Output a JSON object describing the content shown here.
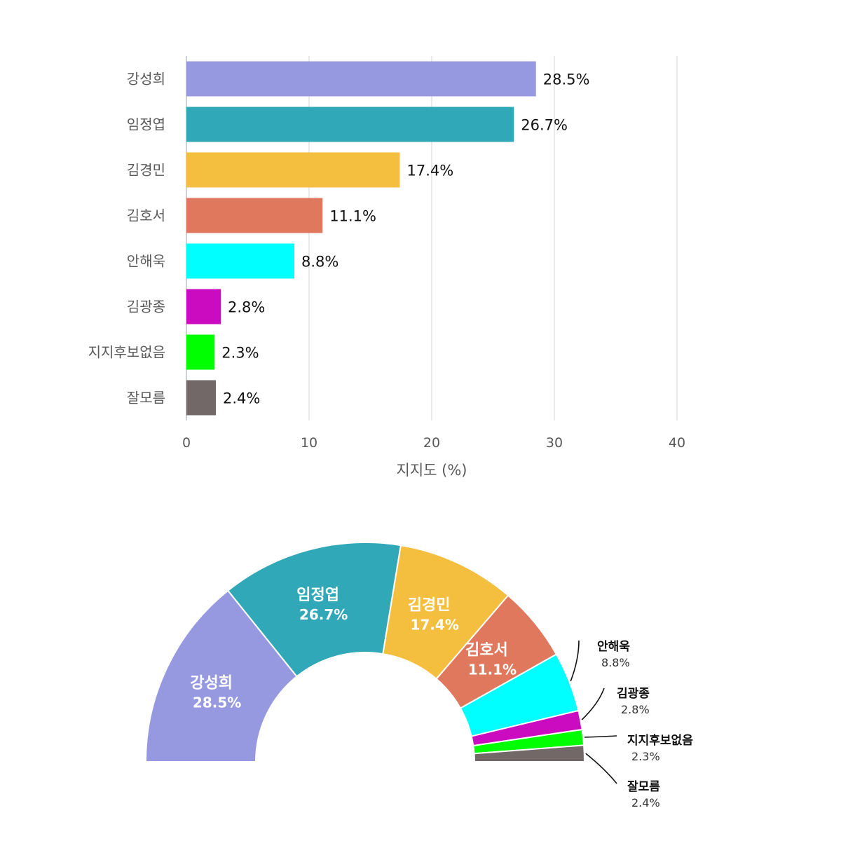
{
  "chart_data": [
    {
      "type": "bar",
      "orientation": "horizontal",
      "categories": [
        "강성희",
        "임정엽",
        "김경민",
        "김호서",
        "안해욱",
        "김광종",
        "지지후보없음",
        "잘모름"
      ],
      "values": [
        28.5,
        26.7,
        17.4,
        11.1,
        8.8,
        2.8,
        2.3,
        2.4
      ],
      "value_labels": [
        "28.5%",
        "26.7%",
        "17.4%",
        "11.1%",
        "8.8%",
        "2.8%",
        "2.3%",
        "2.4%"
      ],
      "colors": [
        "#9799E0",
        "#31A8B8",
        "#F4BE3F",
        "#DF785C",
        "#00FFFF",
        "#CB0BBF",
        "#00FF00",
        "#736868"
      ],
      "xlabel": "지지도 (%)",
      "xlim": [
        0,
        40
      ],
      "xticks": [
        0,
        10,
        20,
        30,
        40
      ],
      "xtick_labels": [
        "0",
        "10",
        "20",
        "30",
        "40"
      ],
      "grid": true
    },
    {
      "type": "pie",
      "style": "half-donut",
      "categories": [
        "강성희",
        "임정엽",
        "김경민",
        "김호서",
        "안해욱",
        "김광종",
        "지지후보없음",
        "잘모름"
      ],
      "values": [
        28.5,
        26.7,
        17.4,
        11.1,
        8.8,
        2.8,
        2.3,
        2.4
      ],
      "value_labels": [
        "28.5%",
        "26.7%",
        "17.4%",
        "11.1%",
        "8.8%",
        "2.8%",
        "2.3%",
        "2.4%"
      ],
      "colors": [
        "#9799E0",
        "#31A8B8",
        "#F4BE3F",
        "#DF785C",
        "#00FFFF",
        "#CB0BBF",
        "#00FF00",
        "#736868"
      ],
      "labels_inside": [
        true,
        true,
        true,
        true,
        false,
        false,
        false,
        false
      ]
    }
  ]
}
